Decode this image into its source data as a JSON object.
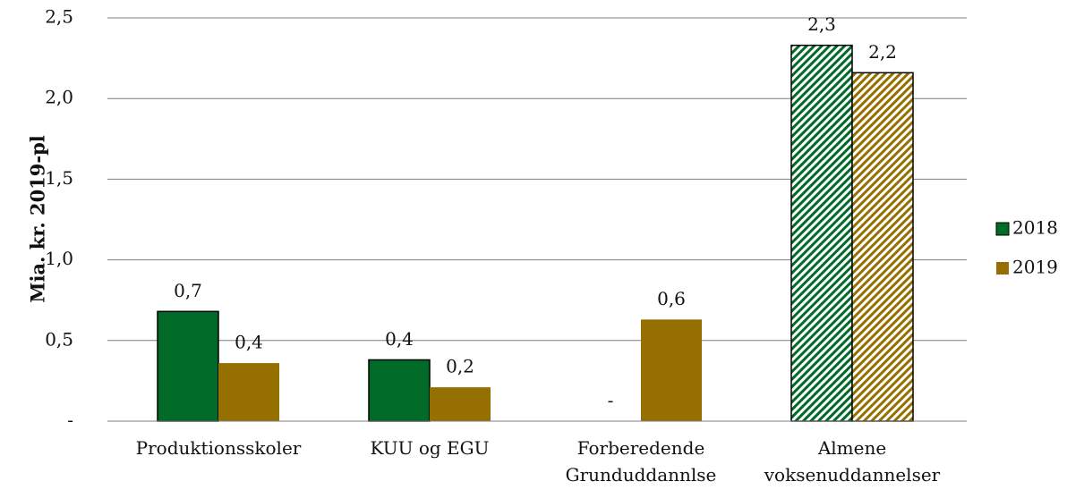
{
  "chart_data": {
    "type": "bar",
    "y_label": "Mia. kr. 2019-pl",
    "categories": [
      "Produktionsskoler",
      "KUU og EGU",
      "Forberedende\nGrunduddannlse",
      "Almene\nvoksenuddannelser"
    ],
    "series": [
      {
        "name": "2018",
        "color": "#006a28",
        "values": [
          0.68,
          0.38,
          0,
          2.33
        ],
        "value_labels": [
          "0,7",
          "0,4",
          "-",
          "2,3"
        ]
      },
      {
        "name": "2019",
        "color": "#957000",
        "values": [
          0.36,
          0.21,
          0.63,
          2.16
        ],
        "value_labels": [
          "0,4",
          "0,2",
          "0,6",
          "2,2"
        ]
      }
    ],
    "hatched": [
      false,
      false,
      false,
      true
    ],
    "ylim": [
      0,
      2.5
    ],
    "yticks": [
      {
        "value": 0,
        "label": "-"
      },
      {
        "value": 0.5,
        "label": "0,5"
      },
      {
        "value": 1.0,
        "label": "1,0"
      },
      {
        "value": 1.5,
        "label": "1,5"
      },
      {
        "value": 2.0,
        "label": "2,0"
      },
      {
        "value": 2.5,
        "label": "2,5"
      }
    ],
    "grid": true,
    "legend": "right"
  }
}
